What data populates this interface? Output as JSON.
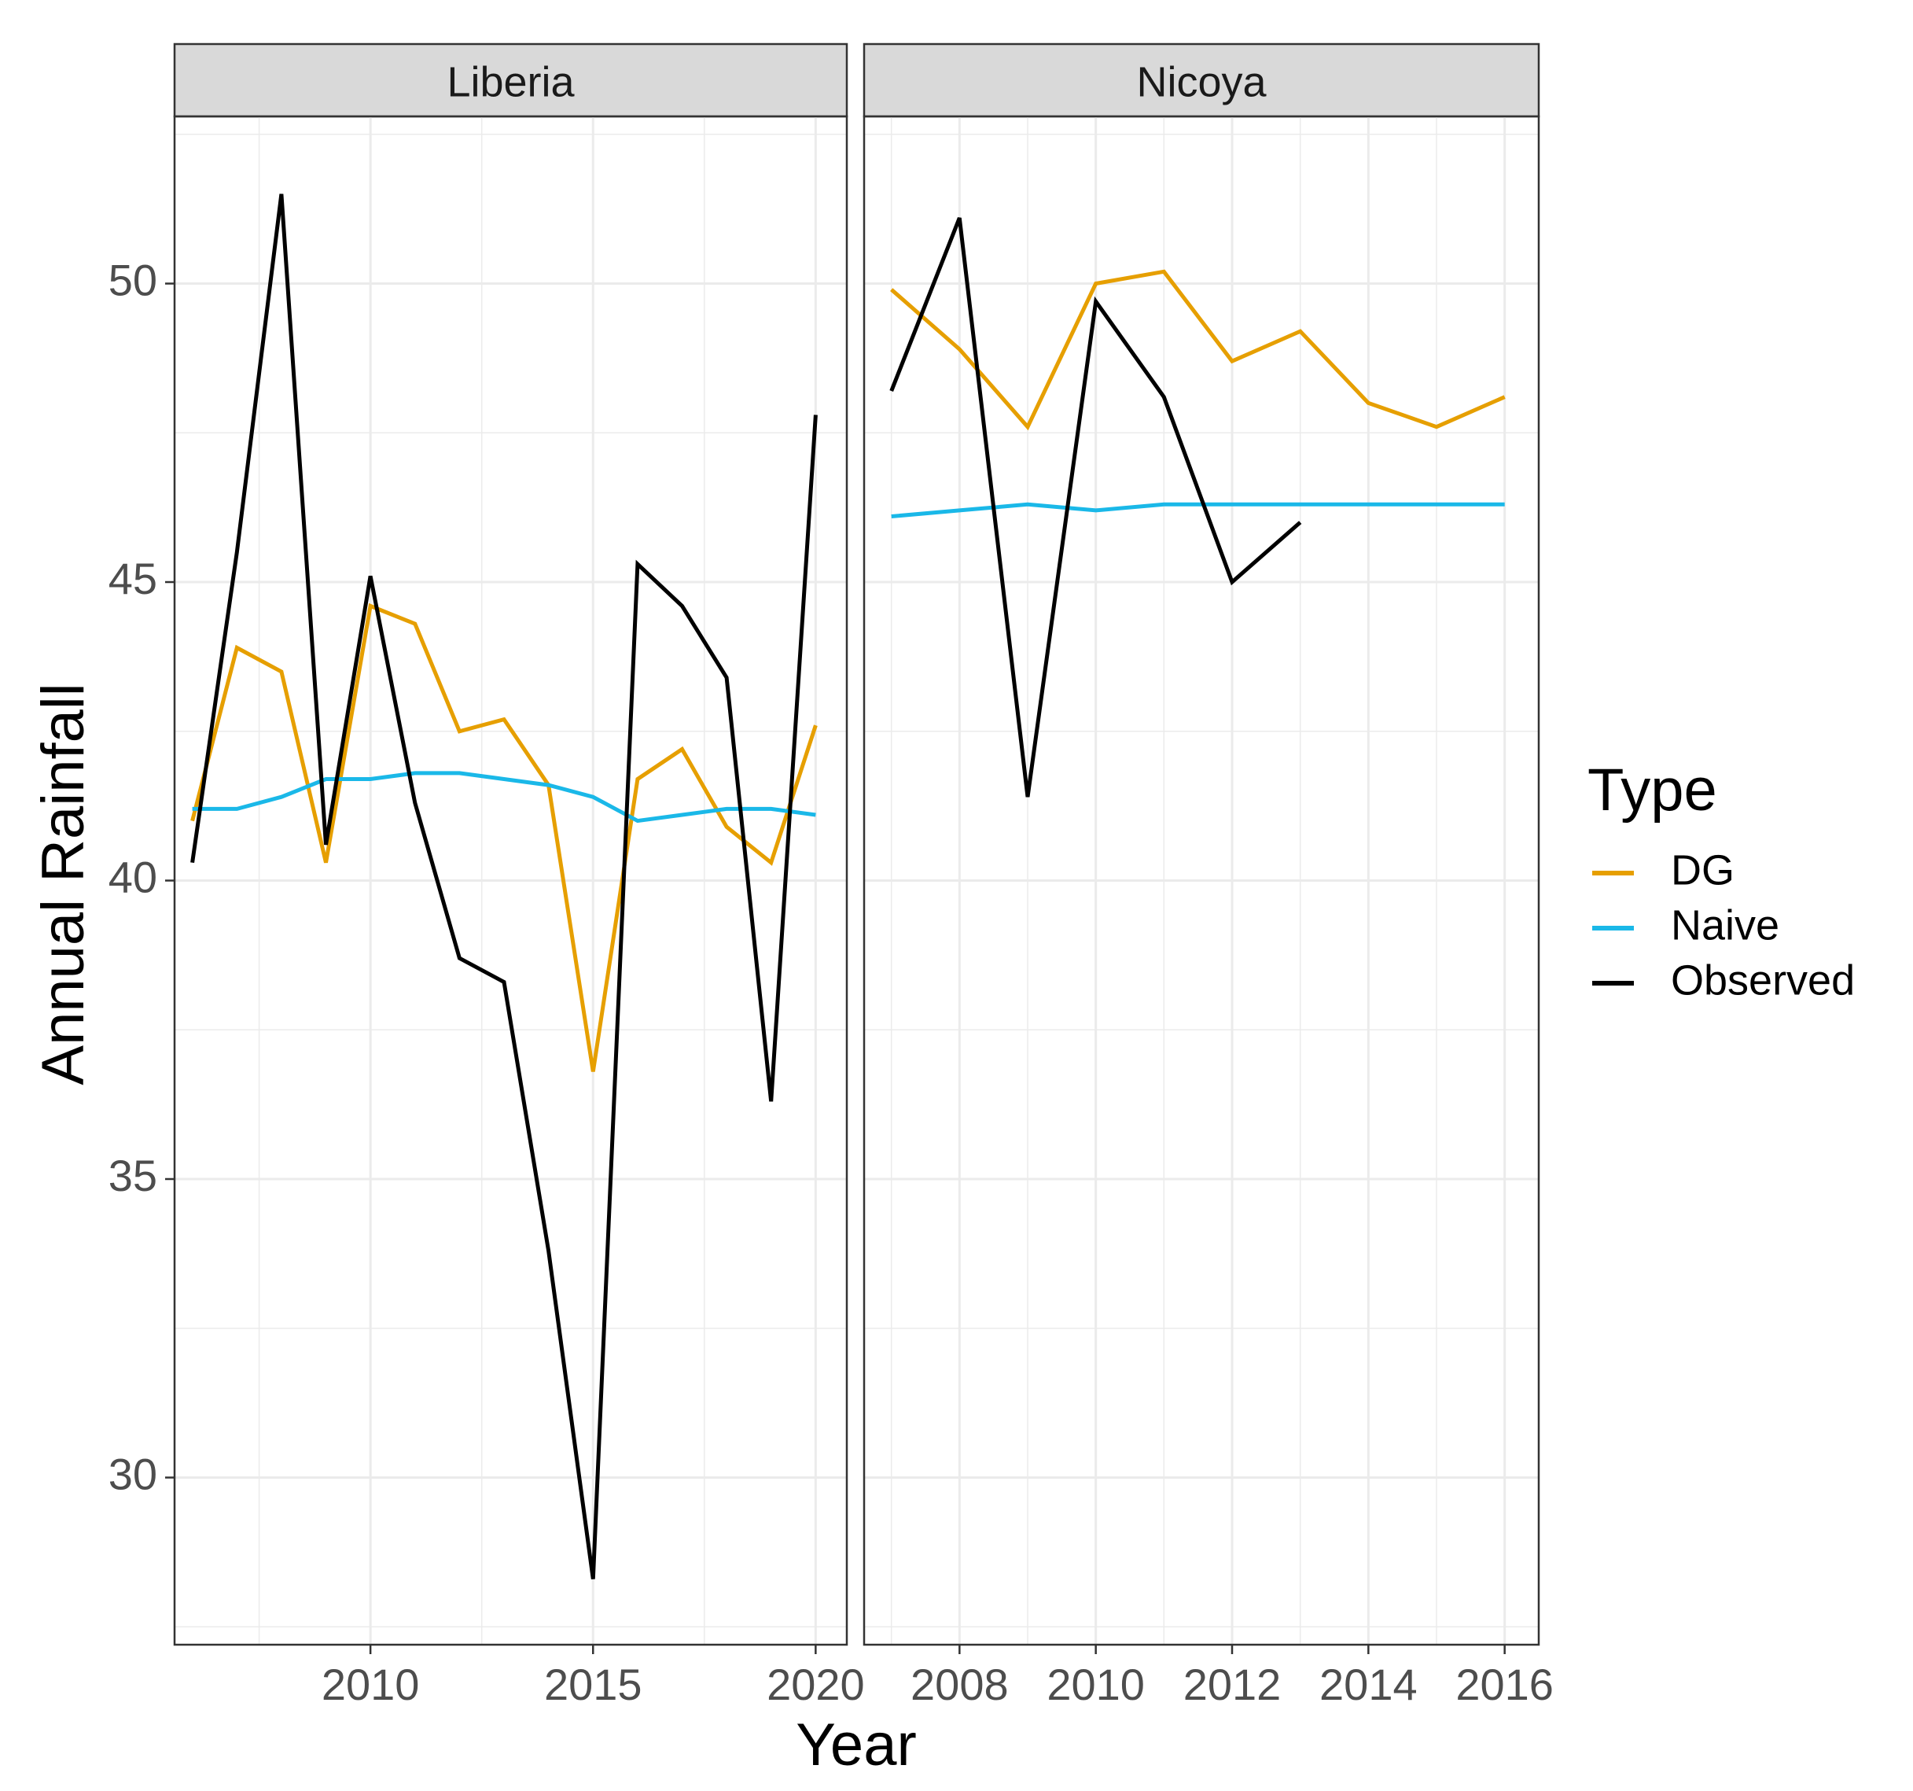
{
  "colors": {
    "DG": "#E69F00",
    "Naive": "#1AB8E8",
    "Observed": "#000000",
    "strip": "#D9D9D9",
    "grid": "#EBEBEB",
    "panel_border": "#333333",
    "tick_text": "#4D4D4D"
  },
  "chart_data": {
    "type": "line",
    "xlabel": "Year",
    "ylabel": "Annual Rainfall",
    "ylim": [
      27.2,
      52.8
    ],
    "yticks": [
      30,
      35,
      40,
      45,
      50
    ],
    "ytick_labels": [
      "30",
      "35",
      "40",
      "45",
      "50"
    ],
    "legend": {
      "title": "Type",
      "position": "right",
      "entries": [
        "DG",
        "Naive",
        "Observed"
      ]
    },
    "panels": [
      {
        "name": "Liberia",
        "xlim": [
          2005.6,
          2020.7
        ],
        "xticks": [
          2010,
          2015,
          2020
        ],
        "xtick_labels": [
          "2010",
          "2015",
          "2020"
        ],
        "series": [
          {
            "name": "DG",
            "x": [
              2006,
              2007,
              2008,
              2009,
              2010,
              2011,
              2012,
              2013,
              2014,
              2015,
              2016,
              2017,
              2018,
              2019,
              2020
            ],
            "values": [
              41.0,
              43.9,
              43.5,
              40.3,
              44.6,
              44.3,
              42.5,
              42.7,
              41.6,
              36.8,
              41.7,
              42.2,
              40.9,
              40.3,
              42.6
            ]
          },
          {
            "name": "Naive",
            "x": [
              2006,
              2007,
              2008,
              2009,
              2010,
              2011,
              2012,
              2013,
              2014,
              2015,
              2016,
              2017,
              2018,
              2019,
              2020
            ],
            "values": [
              41.2,
              41.2,
              41.4,
              41.7,
              41.7,
              41.8,
              41.8,
              41.7,
              41.6,
              41.4,
              41.0,
              41.1,
              41.2,
              41.2,
              41.1
            ]
          },
          {
            "name": "Observed",
            "x": [
              2006,
              2007,
              2008,
              2009,
              2010,
              2011,
              2012,
              2013,
              2014,
              2015,
              2016,
              2017,
              2018,
              2019,
              2020
            ],
            "values": [
              40.3,
              45.5,
              51.5,
              40.6,
              45.1,
              41.3,
              38.7,
              38.3,
              33.8,
              28.3,
              45.3,
              44.6,
              43.4,
              36.3,
              47.8
            ]
          }
        ]
      },
      {
        "name": "Nicoya",
        "xlim": [
          2006.6,
          2016.5
        ],
        "xticks": [
          2008,
          2010,
          2012,
          2014,
          2016
        ],
        "xtick_labels": [
          "2008",
          "2010",
          "2012",
          "2014",
          "2016"
        ],
        "series": [
          {
            "name": "DG",
            "x": [
              2007,
              2008,
              2009,
              2010,
              2011,
              2012,
              2013,
              2014,
              2015,
              2016
            ],
            "values": [
              49.9,
              48.9,
              47.6,
              50.0,
              50.2,
              48.7,
              49.2,
              48.0,
              47.6,
              48.1
            ]
          },
          {
            "name": "Naive",
            "x": [
              2007,
              2008,
              2009,
              2010,
              2011,
              2012,
              2013,
              2014,
              2015,
              2016
            ],
            "values": [
              46.1,
              46.2,
              46.3,
              46.2,
              46.3,
              46.3,
              46.3,
              46.3,
              46.3,
              46.3
            ]
          },
          {
            "name": "Observed",
            "x": [
              2007,
              2008,
              2009,
              2010,
              2011,
              2012,
              2013
            ],
            "values": [
              48.2,
              51.1,
              41.4,
              49.7,
              48.1,
              45.0,
              46.0
            ]
          }
        ]
      }
    ]
  }
}
